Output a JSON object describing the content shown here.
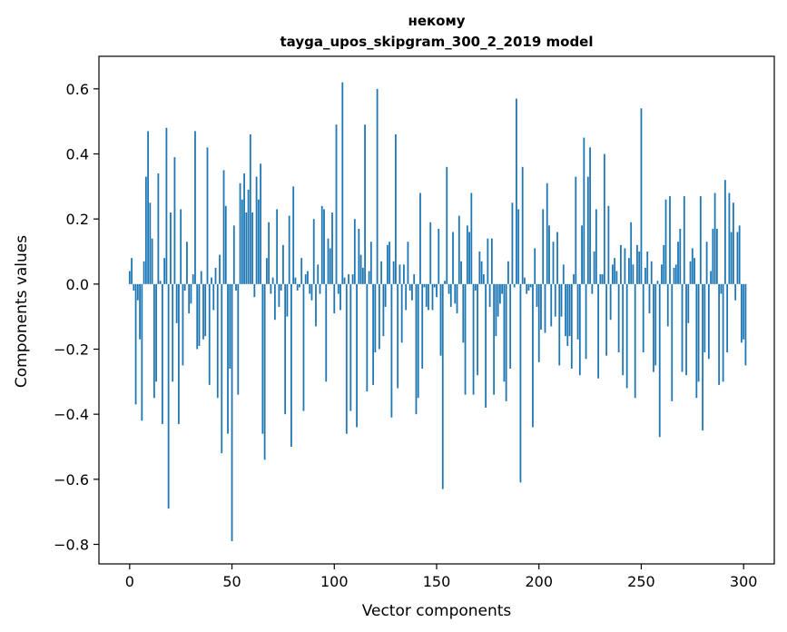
{
  "chart_data": {
    "type": "bar",
    "title": "некому",
    "subtitle": "tayga_upos_skipgram_300_2_2019 model",
    "xlabel": "Vector components",
    "ylabel": "Components values",
    "xlim": [
      -15,
      315
    ],
    "ylim": [
      -0.86,
      0.7
    ],
    "xticks": [
      0,
      50,
      100,
      150,
      200,
      250,
      300
    ],
    "xtick_labels": [
      "0",
      "50",
      "100",
      "150",
      "200",
      "250",
      "300"
    ],
    "yticks": [
      -0.8,
      -0.6,
      -0.4,
      -0.2,
      0.0,
      0.2,
      0.4,
      0.6
    ],
    "ytick_labels": [
      "−0.8",
      "−0.6",
      "−0.4",
      "−0.2",
      "0.0",
      "0.2",
      "0.4",
      "0.6"
    ],
    "bar_color": "#1f77b4",
    "grid": false,
    "values": [
      0.04,
      0.08,
      -0.02,
      -0.37,
      -0.05,
      -0.17,
      -0.42,
      0.07,
      0.33,
      0.47,
      0.25,
      0.14,
      -0.35,
      -0.3,
      0.34,
      0.01,
      -0.43,
      0.08,
      0.48,
      -0.69,
      0.22,
      -0.3,
      0.39,
      -0.12,
      -0.43,
      0.23,
      -0.25,
      -0.02,
      0.13,
      -0.09,
      -0.06,
      0.03,
      0.47,
      -0.2,
      -0.19,
      0.04,
      -0.17,
      -0.16,
      0.42,
      -0.31,
      0.02,
      -0.08,
      0.05,
      -0.35,
      0.09,
      -0.52,
      0.35,
      0.24,
      -0.46,
      -0.26,
      -0.79,
      0.18,
      -0.02,
      -0.34,
      0.31,
      0.26,
      0.34,
      0.22,
      0.29,
      0.46,
      0.22,
      -0.04,
      0.33,
      0.26,
      0.37,
      -0.46,
      -0.54,
      0.08,
      0.19,
      -0.03,
      0.02,
      -0.11,
      0.23,
      -0.07,
      -0.02,
      0.12,
      -0.4,
      -0.1,
      0.21,
      -0.5,
      0.3,
      0.02,
      -0.02,
      -0.01,
      0.08,
      -0.39,
      0.03,
      0.04,
      -0.03,
      -0.05,
      0.2,
      -0.13,
      0.06,
      -0.03,
      0.24,
      0.23,
      -0.3,
      0.14,
      0.11,
      0.22,
      -0.09,
      0.49,
      -0.03,
      -0.08,
      0.62,
      0.02,
      -0.46,
      0.03,
      -0.39,
      0.03,
      0.2,
      -0.44,
      0.17,
      0.09,
      0.05,
      0.49,
      -0.33,
      0.04,
      0.13,
      -0.31,
      -0.21,
      0.6,
      -0.2,
      0.07,
      -0.16,
      -0.07,
      0.12,
      0.13,
      -0.41,
      0.07,
      0.46,
      -0.32,
      0.06,
      -0.18,
      0.06,
      -0.08,
      0.13,
      -0.02,
      -0.05,
      0.03,
      -0.4,
      -0.35,
      0.28,
      -0.26,
      -0.01,
      -0.07,
      -0.08,
      0.19,
      -0.08,
      -0.01,
      -0.04,
      0.17,
      -0.22,
      -0.63,
      0.01,
      0.36,
      -0.03,
      -0.07,
      0.16,
      -0.06,
      -0.09,
      0.21,
      0.07,
      -0.18,
      -0.34,
      0.18,
      0.16,
      0.28,
      -0.34,
      -0.02,
      -0.28,
      0.1,
      0.07,
      0.03,
      -0.38,
      0.14,
      -0.07,
      0.14,
      -0.34,
      -0.16,
      -0.1,
      -0.06,
      -0.03,
      -0.3,
      -0.36,
      0.07,
      -0.26,
      0.25,
      -0.01,
      0.57,
      0.23,
      -0.61,
      0.36,
      0.02,
      -0.03,
      -0.02,
      -0.01,
      -0.44,
      0.11,
      -0.07,
      -0.24,
      -0.14,
      0.23,
      -0.15,
      0.31,
      0.18,
      -0.13,
      0.13,
      -0.1,
      0.16,
      -0.25,
      -0.1,
      0.06,
      -0.16,
      -0.19,
      -0.16,
      -0.26,
      0.03,
      0.33,
      -0.17,
      -0.28,
      0.18,
      0.45,
      -0.23,
      0.33,
      0.42,
      -0.03,
      0.1,
      0.23,
      -0.29,
      0.03,
      0.03,
      0.4,
      -0.22,
      0.24,
      -0.11,
      0.06,
      0.08,
      0.04,
      -0.21,
      0.12,
      -0.28,
      0.11,
      -0.32,
      0.08,
      0.19,
      0.06,
      -0.35,
      0.12,
      0.1,
      0.54,
      -0.21,
      0.05,
      0.1,
      -0.09,
      0.07,
      -0.27,
      -0.25,
      0.01,
      -0.47,
      0.06,
      0.12,
      0.26,
      -0.13,
      0.27,
      -0.36,
      0.05,
      0.06,
      0.13,
      0.17,
      -0.27,
      0.27,
      -0.28,
      -0.12,
      0.07,
      0.11,
      0.08,
      -0.35,
      -0.3,
      0.27,
      -0.45,
      -0.21,
      0.13,
      -0.23,
      0.04,
      0.17,
      0.28,
      0.17,
      -0.31,
      -0.03,
      -0.3,
      0.32,
      -0.21,
      0.28,
      0.16,
      0.25,
      -0.05,
      0.16,
      0.18,
      -0.18,
      -0.17,
      -0.25
    ]
  }
}
